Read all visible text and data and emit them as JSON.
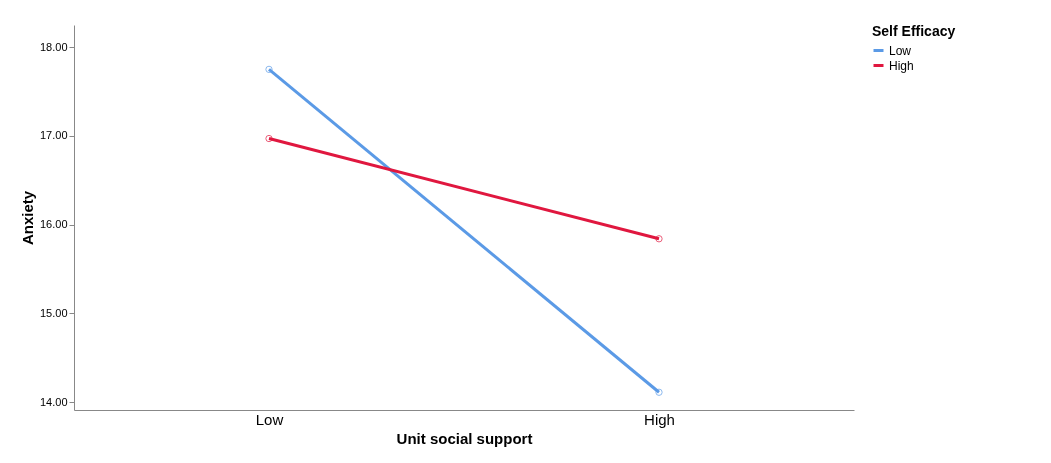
{
  "chart_data": {
    "type": "line",
    "xlabel": "Unit social support",
    "ylabel": "Anxiety",
    "legend_title": "Self Efficacy",
    "categories": [
      "Low",
      "High"
    ],
    "series": [
      {
        "name": "Low",
        "color": "#5b9ae6",
        "values": [
          17.75,
          14.11
        ]
      },
      {
        "name": "High",
        "color": "#e0173f",
        "values": [
          16.97,
          15.84
        ]
      }
    ],
    "ylim": [
      13.91,
      18.25
    ],
    "yticks": [
      {
        "value": 14,
        "label": "14.00"
      },
      {
        "value": 15,
        "label": "15.00"
      },
      {
        "value": 16,
        "label": "16.00"
      },
      {
        "value": 17,
        "label": "17.00"
      },
      {
        "value": 18,
        "label": "18.00"
      }
    ],
    "grid": false,
    "legend": "top right",
    "marker": "circle",
    "line_style": "solid"
  }
}
